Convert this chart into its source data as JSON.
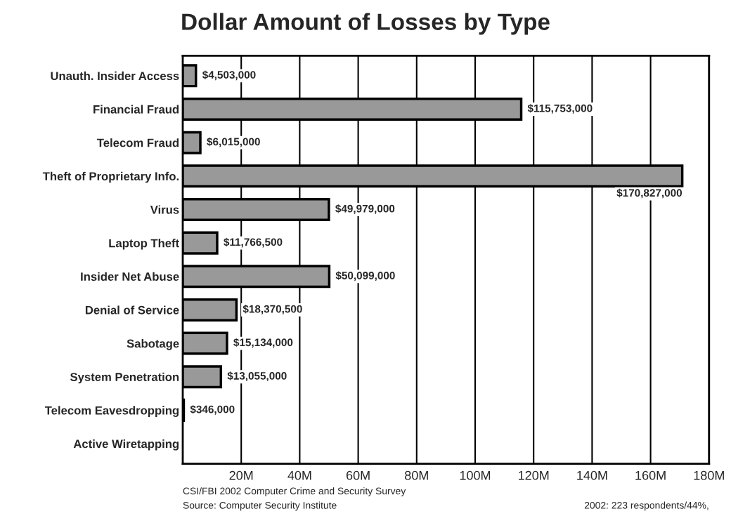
{
  "chart_data": {
    "type": "bar",
    "orientation": "horizontal",
    "title": "Dollar Amount of Losses by Type",
    "categories": [
      "Unauth. Insider Access",
      "Financial Fraud",
      "Telecom Fraud",
      "Theft of Proprietary Info.",
      "Virus",
      "Laptop Theft",
      "Insider Net Abuse",
      "Denial of Service",
      "Sabotage",
      "System Penetration",
      "Telecom Eavesdropping",
      "Active Wiretapping"
    ],
    "values": [
      4503000,
      115753000,
      6015000,
      170827000,
      49979000,
      11766500,
      50099000,
      18370500,
      15134000,
      13055000,
      346000,
      null
    ],
    "value_labels": [
      "$4,503,000",
      "$115,753,000",
      "$6,015,000",
      "$170,827,000",
      "$49,979,000",
      "$11,766,500",
      "$50,099,000",
      "$18,370,500",
      "$15,134,000",
      "$13,055,000",
      "$346,000",
      null
    ],
    "color": "#999999",
    "xlim": [
      0,
      180000000
    ],
    "xticks": [
      {
        "value": 20000000,
        "label": "20M"
      },
      {
        "value": 40000000,
        "label": "40M"
      },
      {
        "value": 60000000,
        "label": "60M"
      },
      {
        "value": 80000000,
        "label": "80M"
      },
      {
        "value": 100000000,
        "label": "100M"
      },
      {
        "value": 120000000,
        "label": "120M"
      },
      {
        "value": 140000000,
        "label": "140M"
      },
      {
        "value": 160000000,
        "label": "160M"
      },
      {
        "value": 180000000,
        "label": "180M"
      }
    ],
    "grid": "x",
    "annotations": [
      "CSI/FBI 2002 Computer Crime and Security Survey",
      "Source: Computer Security Institute",
      "2002: 223 respondents/44%,"
    ]
  }
}
